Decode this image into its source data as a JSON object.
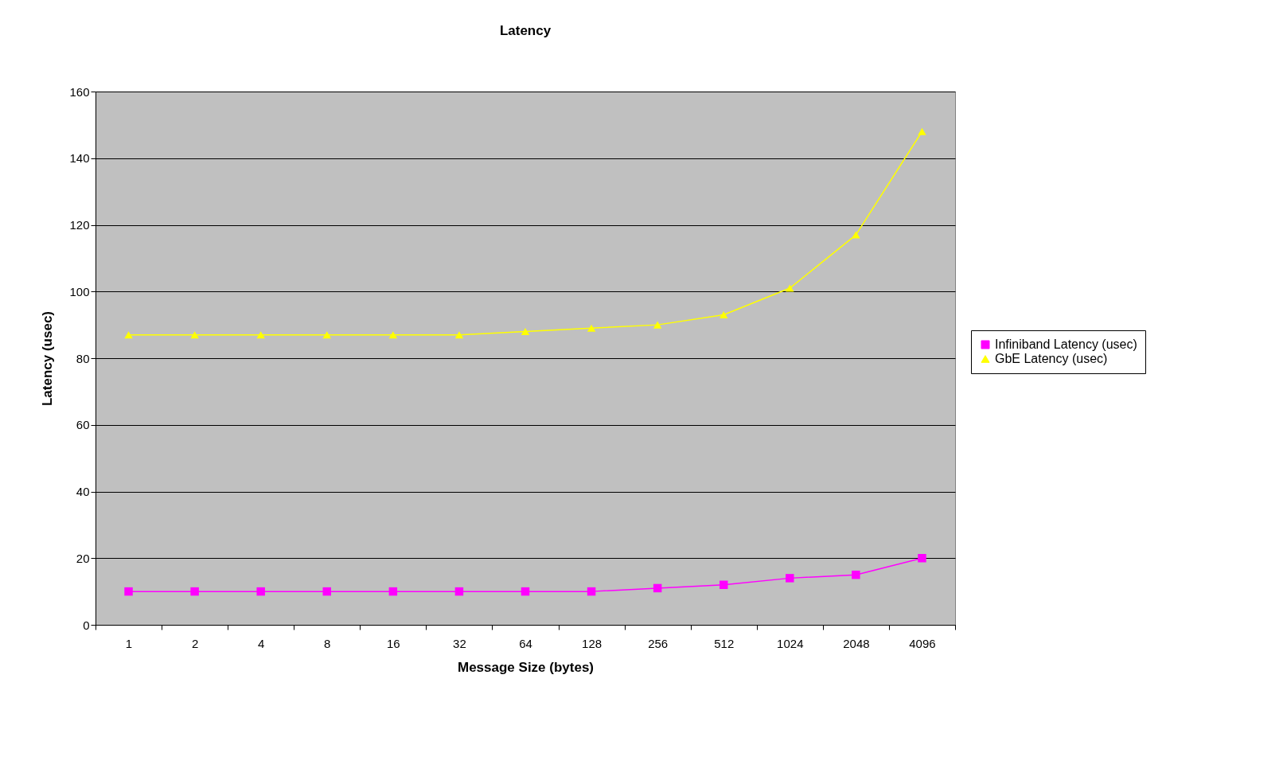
{
  "chart_data": {
    "type": "line",
    "title": "Latency",
    "xlabel": "Message Size (bytes)",
    "ylabel": "Latency (usec)",
    "categories": [
      "1",
      "2",
      "4",
      "8",
      "16",
      "32",
      "64",
      "128",
      "256",
      "512",
      "1024",
      "2048",
      "4096"
    ],
    "series": [
      {
        "name": "Infiniband Latency (usec)",
        "color": "#ff00ff",
        "marker": "square",
        "values": [
          10,
          10,
          10,
          10,
          10,
          10,
          10,
          10,
          11,
          12,
          14,
          15,
          20
        ]
      },
      {
        "name": "GbE Latency (usec)",
        "color": "#ffff00",
        "marker": "triangle",
        "values": [
          87,
          87,
          87,
          87,
          87,
          87,
          88,
          89,
          90,
          93,
          101,
          117,
          148
        ]
      }
    ],
    "ylim": [
      0,
      160
    ],
    "yticks": [
      0,
      20,
      40,
      60,
      80,
      100,
      120,
      140,
      160
    ],
    "grid": "y",
    "legend": "right"
  }
}
